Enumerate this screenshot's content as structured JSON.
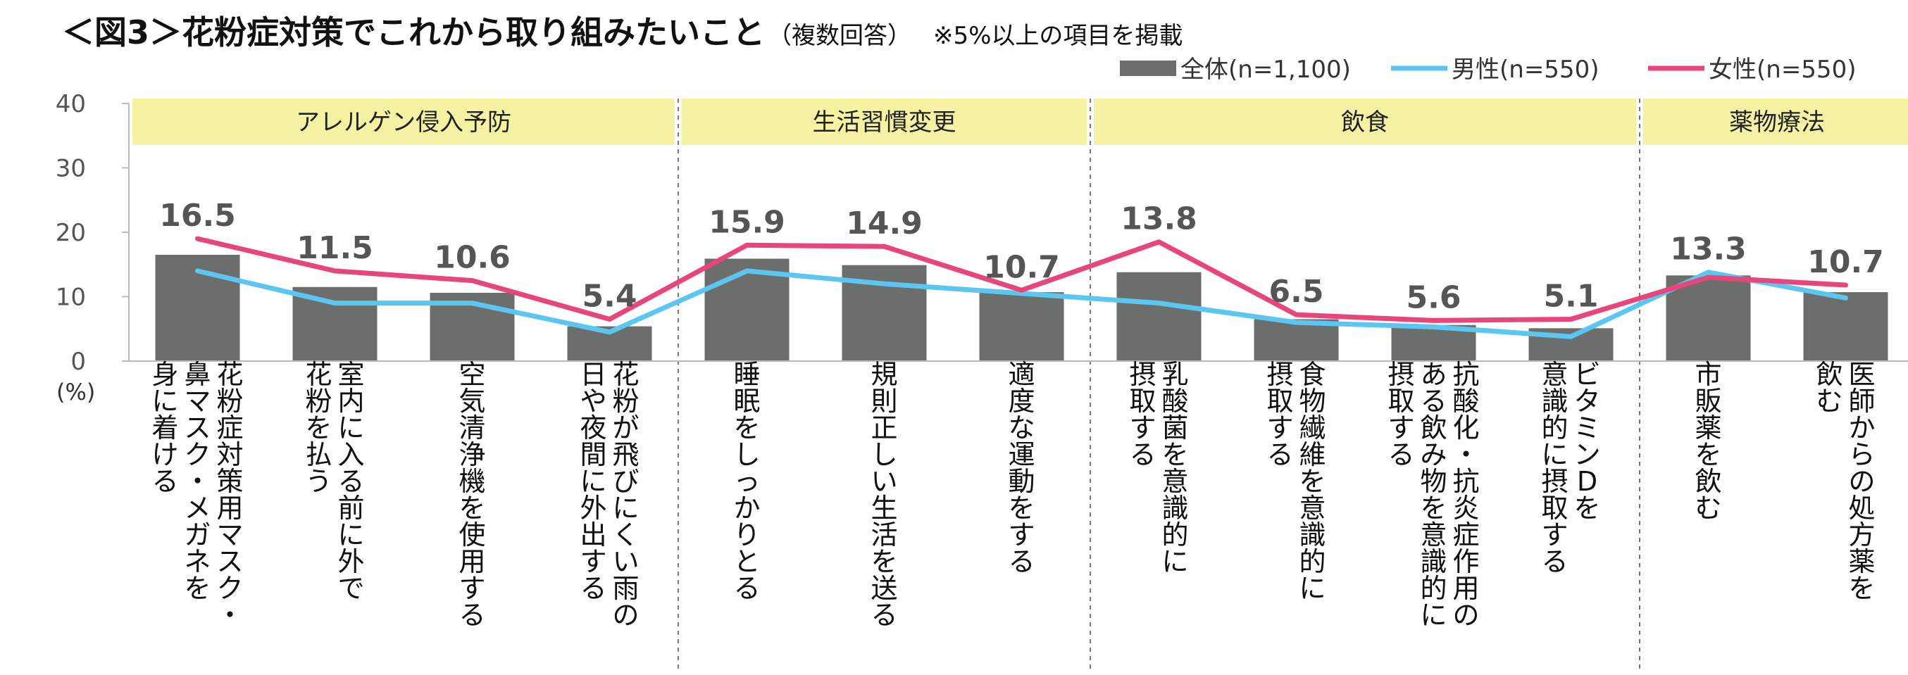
{
  "title": {
    "main": "＜図3＞花粉症対策でこれから取り組みたいこと",
    "paren": "（複数回答）",
    "note": "※5%以上の項目を掲載"
  },
  "chart_data": {
    "type": "bar",
    "unit_label": "(%)",
    "ylim": [
      0,
      40
    ],
    "yticks": [
      0,
      10,
      20,
      30,
      40
    ],
    "categories": [
      "花粉症対策用マスク・鼻マスク・メガネを身に着ける",
      "室内に入る前に外で花粉を払う",
      "空気清浄機を使用する",
      "花粉が飛びにくい雨の日や夜間に外出する",
      "睡眠をしっかりとる",
      "規則正しい生活を送る",
      "適度な運動をする",
      "乳酸菌を意識的に摂取する",
      "食物繊維を意識的に摂取する",
      "抗酸化・抗炎症作用のある飲み物を意識的に摂取する",
      "ビタミンDを意識的に摂取する",
      "市販薬を飲む",
      "医師からの処方薬を飲む"
    ],
    "category_lines": [
      [
        "花粉症対策用マスク・",
        "鼻マスク・メガネを",
        "身に着ける"
      ],
      [
        "室内に入る前に外で",
        "花粉を払う"
      ],
      [
        "空気清浄機を使用する"
      ],
      [
        "花粉が飛びにくい雨の",
        "日や夜間に外出する"
      ],
      [
        "睡眠をしっかりとる"
      ],
      [
        "規則正しい生活を送る"
      ],
      [
        "適度な運動をする"
      ],
      [
        "乳酸菌を意識的に",
        "摂取する"
      ],
      [
        "食物繊維を意識的に",
        "摂取する"
      ],
      [
        "抗酸化・抗炎症作用の",
        "ある飲み物を意識的に",
        "摂取する"
      ],
      [
        "ビタミンDを",
        "意識的に摂取する"
      ],
      [
        "市販薬を飲む"
      ],
      [
        "医師からの処方薬を",
        "飲む"
      ]
    ],
    "series": [
      {
        "name": "全体(n=1,100)",
        "kind": "bar",
        "color": "#6b6e6b",
        "values": [
          16.5,
          11.5,
          10.6,
          5.4,
          15.9,
          14.9,
          10.7,
          13.8,
          6.5,
          5.6,
          5.1,
          13.3,
          10.7
        ]
      },
      {
        "name": "男性(n=550)",
        "kind": "line",
        "color": "#5bc6f2",
        "values": [
          14.0,
          9.0,
          9.0,
          4.5,
          14.0,
          12.0,
          10.5,
          9.0,
          6.0,
          5.3,
          3.8,
          13.8,
          9.8
        ]
      },
      {
        "name": "女性(n=550)",
        "kind": "line",
        "color": "#e8457a",
        "values": [
          19.0,
          14.0,
          12.5,
          6.5,
          18.0,
          17.8,
          11.0,
          18.5,
          7.2,
          6.3,
          6.5,
          13.0,
          11.8
        ]
      }
    ],
    "value_labels": [
      "16.5",
      "11.5",
      "10.6",
      "5.4",
      "15.9",
      "14.9",
      "10.7",
      "13.8",
      "6.5",
      "5.6",
      "5.1",
      "13.3",
      "10.7"
    ],
    "groups": [
      {
        "label": "アレルゲン侵入予防",
        "start": 0,
        "end": 3
      },
      {
        "label": "生活習慣変更",
        "start": 4,
        "end": 6
      },
      {
        "label": "飲食",
        "start": 7,
        "end": 10
      },
      {
        "label": "薬物療法",
        "start": 11,
        "end": 12
      }
    ],
    "group_color": "#f5f2a3",
    "legend_position": "top-right",
    "grid": false
  }
}
